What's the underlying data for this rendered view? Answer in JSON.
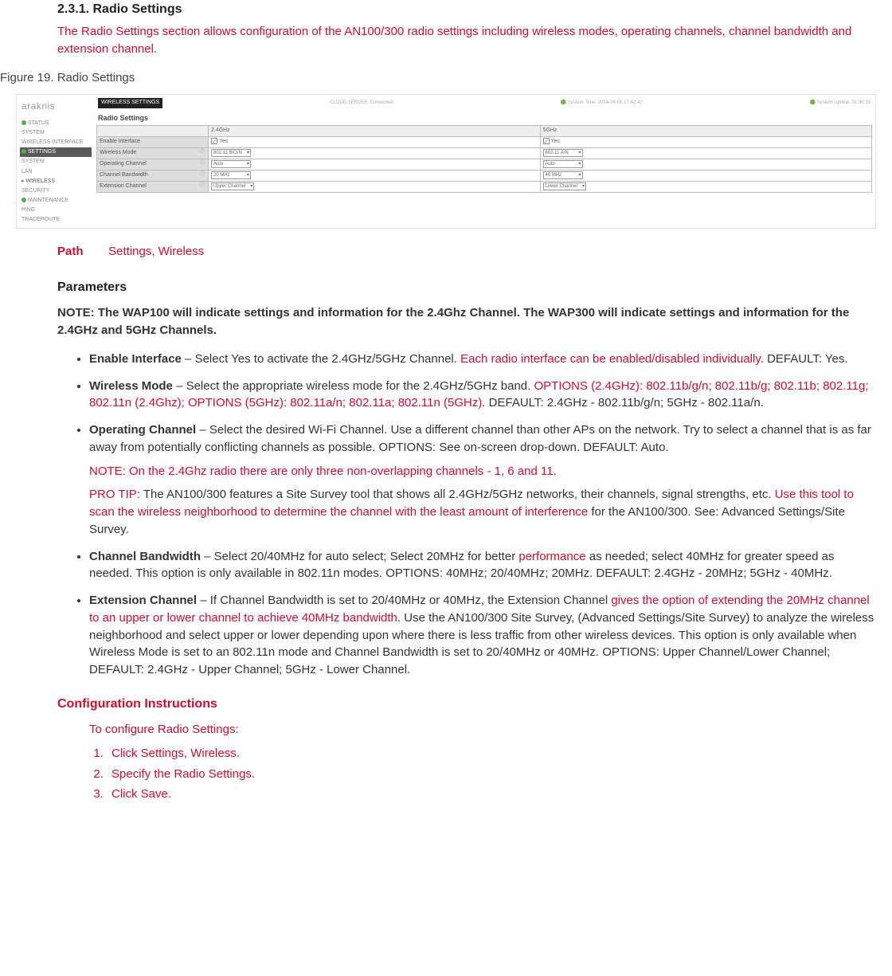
{
  "section": {
    "number": "2.3.1.",
    "title": "Radio Settings"
  },
  "desc": "The Radio Settings section allows configuration of the AN100/300 radio settings including wireless modes, operating channels, channel bandwidth and extension channel.",
  "figure_caption": "Figure 19. Radio Settings",
  "screenshot": {
    "logo": "araknis",
    "toolbar_label": "WIRELESS SETTINGS",
    "top_status": {
      "cloud": "CLOUD SERVER:  Connected",
      "time": "System Time:  2014-06-06 17:42:42",
      "uptime": "System Uptime:  01:30:33"
    },
    "nav": [
      {
        "label": "STATUS",
        "dot": true
      },
      {
        "label": "SYSTEM"
      },
      {
        "label": "WIRELESS INTERFACE"
      },
      {
        "label": "SETTINGS",
        "selected": true,
        "dot": true
      },
      {
        "label": "SYSTEM"
      },
      {
        "label": "LAN"
      },
      {
        "label": "▸ WIRELESS",
        "bold": true
      },
      {
        "label": "SECURITY"
      },
      {
        "label": "MAINTENANCE",
        "dot": true
      },
      {
        "label": "PING"
      },
      {
        "label": "TRACEROUTE"
      }
    ],
    "table": {
      "title": "Radio Settings",
      "cols": [
        "2.4GHz",
        "5GHz"
      ],
      "rows": [
        {
          "h": "Enable Interface",
          "c24": {
            "chk": true,
            "text": "Yes"
          },
          "c5": {
            "chk": true,
            "text": "Yes"
          }
        },
        {
          "h": "Wireless Mode",
          "info": true,
          "c24": {
            "sel": "802.11 B/G/N"
          },
          "c5": {
            "sel": "802.11 A/N"
          }
        },
        {
          "h": "Operating Channel",
          "info": true,
          "c24": {
            "sel": "Auto"
          },
          "c5": {
            "sel": "Auto"
          }
        },
        {
          "h": "Channel Bandwidth",
          "info": true,
          "c24": {
            "sel": "20 MHz"
          },
          "c5": {
            "sel": "40 MHz"
          }
        },
        {
          "h": "Extension Channel",
          "info": true,
          "c24": {
            "sel": "Upper Channel"
          },
          "c5": {
            "sel": "Lower Channel"
          }
        }
      ]
    }
  },
  "path": {
    "label": "Path",
    "value": "Settings, Wireless"
  },
  "params_heading": "Parameters",
  "params_note": "NOTE: The WAP100 will indicate settings and information for the 2.4Ghz Channel. The WAP300 will indicate settings and information for the 2.4GHz and 5GHz Channels.",
  "params": {
    "enable": {
      "title": "Enable Interface",
      "t1": " – Select Yes to activate the 2.4GHz/5GHz Channel. ",
      "r1": "Each radio interface can be enabled/disabled individually.",
      "t2": " DEFAULT: Yes."
    },
    "mode": {
      "title": "Wireless Mode",
      "t1": " – Select the appropriate wireless mode for the 2.4GHz/5GHz band. ",
      "r1": "OPTIONS (2.4GHz): 802.11b/g/n; 802.11b/g; 802.11b; 802.11g; 802.11n (2.4Ghz); OPTIONS (5GHz): 802.11a/n; 802.11a; 802.11n (5GHz).",
      "t2": " DEFAULT: 2.4GHz - 802.11b/g/n; 5GHz - 802.11a/n."
    },
    "chan": {
      "title": "Operating Channel",
      "t1": " – Select the desired Wi-Fi Channel. Use a different channel than other APs on the network. Try to select a channel that is as far away from potentially conflicting channels as possible. OPTIONS: See on-screen drop-down. DEFAULT: Auto.",
      "note": "NOTE: On the 2.4Ghz radio there are only three non-overlapping channels - 1, 6 and 11.",
      "tip_label": "PRO TIP: ",
      "tip_t1": "The AN100/300 features a Site Survey tool that shows all 2.4GHz/5GHz networks, their channels, signal strengths, etc. ",
      "tip_r1": "Use this tool to scan the wireless neighborhood to determine the channel with the least amount of interference",
      "tip_t2": " for the AN100/300. See: Advanced Settings/Site Survey."
    },
    "bw": {
      "title": "Channel Bandwidth",
      "t1": " – Select 20/40MHz for auto select; Select 20MHz for better ",
      "r1": "performance",
      "t2": " as needed; select 40MHz for greater speed as needed. This option is only available in 802.11n modes. OPTIONS: 40MHz; 20/40MHz; 20MHz. DEFAULT: 2.4GHz - 20MHz; 5GHz - 40MHz."
    },
    "ext": {
      "title": "Extension Channel",
      "t1": " – If Channel Bandwidth is set to 20/40MHz or 40MHz, the Extension Channel ",
      "r1": "gives the option of extending the 20MHz channel to an upper or lower channel to achieve 40MHz bandwidth",
      "t2": ". Use the AN100/300 Site Survey, (Advanced Settings/Site Survey) to analyze the wireless neighborhood and select upper or lower depending upon where there is less traffic from other wireless devices. This option is only available when Wireless Mode is set to an 802.11n mode and Channel Bandwidth is set to 20/40MHz or 40MHz. OPTIONS: Upper Channel/Lower Channel; DEFAULT: 2.4GHz - Upper Channel; 5GHz - Lower Channel."
    }
  },
  "config": {
    "heading": "Configuration Instructions",
    "intro": "To configure Radio Settings:",
    "steps": [
      "Click Settings, Wireless.",
      "Specify the Radio Settings.",
      "Click Save."
    ]
  }
}
